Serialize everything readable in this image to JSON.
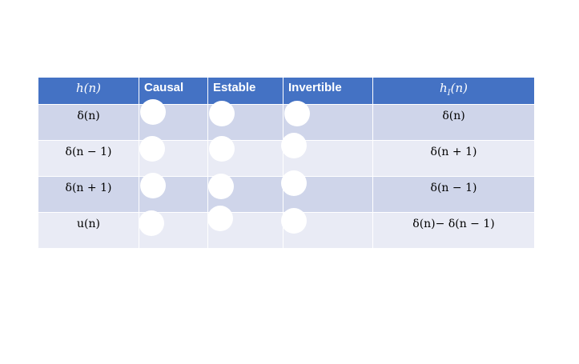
{
  "table": {
    "headers": [
      "h(n)",
      "Causal",
      "Estable",
      "Invertible",
      "h_I(n)"
    ],
    "header_inverse": {
      "base": "h",
      "sub": "I",
      "arg": "(n)"
    },
    "rows": [
      {
        "h": "δ(n)",
        "hi": "δ(n)"
      },
      {
        "h": "δ(n − 1)",
        "hi": "δ(n + 1)"
      },
      {
        "h": "δ(n + 1)",
        "hi": "δ(n − 1)"
      },
      {
        "h": "u(n)",
        "hi": "δ(n)− δ(n − 1)"
      }
    ]
  },
  "colors": {
    "header": "#4472c4",
    "row_odd": "#cfd5ea",
    "row_even": "#e9ebf5"
  }
}
